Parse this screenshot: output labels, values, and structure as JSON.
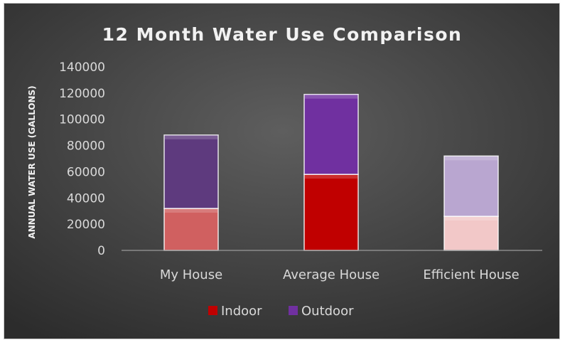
{
  "chart_data": {
    "type": "bar",
    "stacked": true,
    "title": "12 Month Water Use Comparison",
    "xlabel": "",
    "ylabel": "ANNUAL WATER USE (GALLONS)",
    "ylim": [
      0,
      140000
    ],
    "yticks": [
      0,
      20000,
      40000,
      60000,
      80000,
      100000,
      120000,
      140000
    ],
    "grid": false,
    "legend_position": "bottom",
    "categories": [
      "My House",
      "Average House",
      "Efficient House"
    ],
    "series": [
      {
        "name": "Indoor",
        "values": [
          32000,
          58000,
          26000
        ],
        "legend_color": "#c00000",
        "colors": [
          "#d06060",
          "#c00000",
          "#f2c8c8"
        ]
      },
      {
        "name": "Outdoor",
        "values": [
          56000,
          61000,
          46000
        ],
        "legend_color": "#7030a0",
        "colors": [
          "#5e3a7e",
          "#7030a0",
          "#b9a6d0"
        ]
      }
    ],
    "background_colors": [
      "#5e5e5e",
      "#2c2c2c"
    ]
  }
}
